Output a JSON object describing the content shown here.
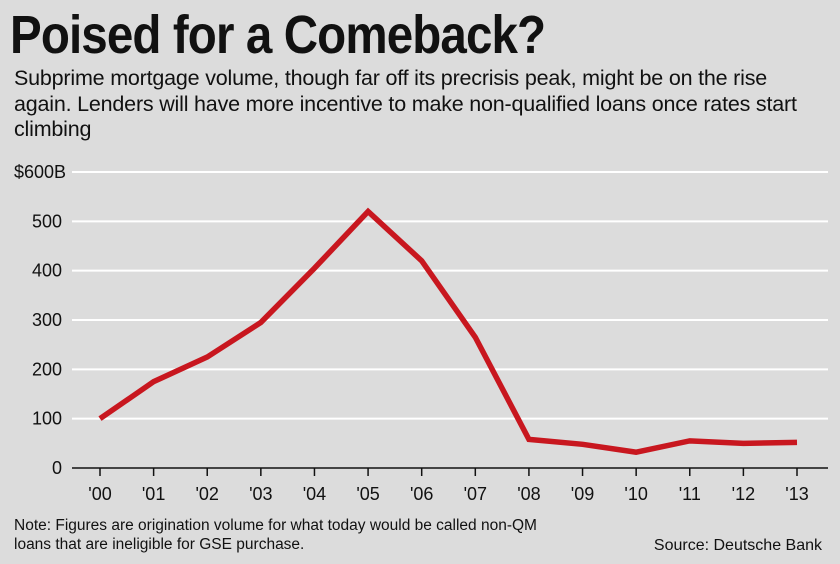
{
  "title": "Poised for a Comeback?",
  "subtitle": "Subprime mortgage volume, though far off its precrisis peak, might be on the rise again. Lenders will have more incentive to make non-qualified loans once rates start climbing",
  "footnote": "Note: Figures are origination volume for what today would be called non-QM loans that are ineligible for GSE purchase.",
  "source": "Source: Deutsche Bank",
  "colors": {
    "background": "#dcdcdc",
    "line": "#c8171f",
    "grid": "#ffffff"
  },
  "chart_data": {
    "type": "line",
    "title": "Poised for a Comeback?",
    "xlabel": "",
    "ylabel": "",
    "categories": [
      "'00",
      "'01",
      "'02",
      "'03",
      "'04",
      "'05",
      "'06",
      "'07",
      "'08",
      "'09",
      "'10",
      "'11",
      "'12",
      "'13"
    ],
    "series": [
      {
        "values": [
          100,
          175,
          225,
          295,
          405,
          520,
          420,
          265,
          58,
          48,
          32,
          55,
          50,
          52
        ]
      }
    ],
    "ylim": [
      0,
      600
    ],
    "yticks": [
      0,
      100,
      200,
      300,
      400,
      500,
      600
    ],
    "ytick_labels": [
      "0",
      "100",
      "200",
      "300",
      "400",
      "500",
      "$600B"
    ],
    "grid": true
  }
}
